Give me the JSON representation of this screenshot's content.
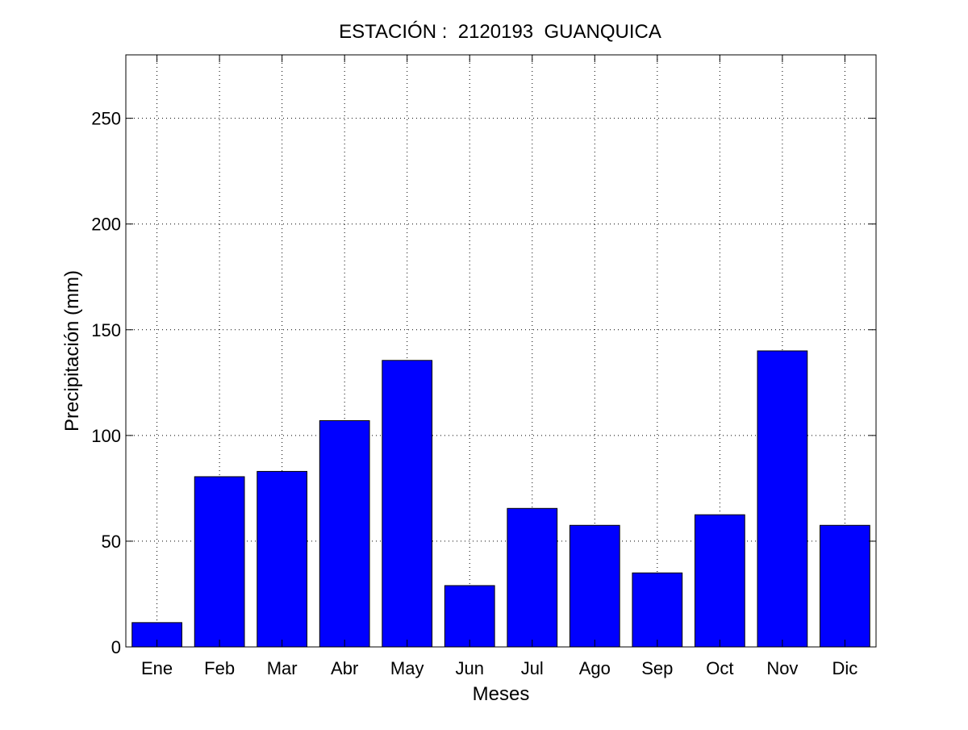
{
  "chart_data": {
    "type": "bar",
    "title": "ESTACIÓN :  2120193  GUANQUICA",
    "xlabel": "Meses",
    "ylabel": "Precipitación (mm)",
    "categories": [
      "Ene",
      "Feb",
      "Mar",
      "Abr",
      "May",
      "Jun",
      "Jul",
      "Ago",
      "Sep",
      "Oct",
      "Nov",
      "Dic"
    ],
    "values": [
      11.5,
      80.5,
      83,
      107,
      135.5,
      29,
      65.5,
      57.5,
      35,
      62.5,
      140,
      57.5
    ],
    "ylim": [
      0,
      280
    ],
    "yticks": [
      0,
      50,
      100,
      150,
      200,
      250
    ],
    "grid": true,
    "bar_color": "#0000ff",
    "edge_color": "#000000"
  }
}
